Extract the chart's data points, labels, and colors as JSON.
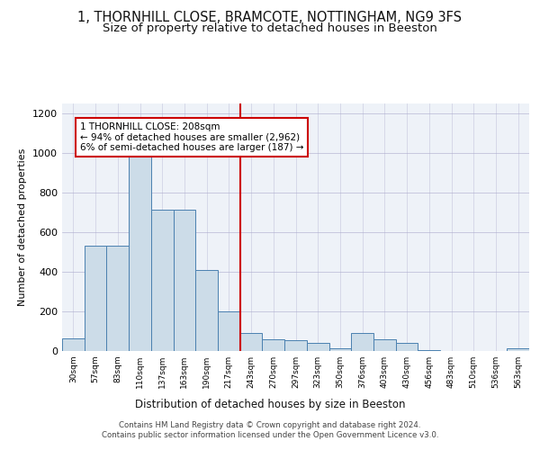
{
  "title": "1, THORNHILL CLOSE, BRAMCOTE, NOTTINGHAM, NG9 3FS",
  "subtitle": "Size of property relative to detached houses in Beeston",
  "xlabel": "Distribution of detached houses by size in Beeston",
  "ylabel": "Number of detached properties",
  "bar_labels": [
    "30sqm",
    "57sqm",
    "83sqm",
    "110sqm",
    "137sqm",
    "163sqm",
    "190sqm",
    "217sqm",
    "243sqm",
    "270sqm",
    "297sqm",
    "323sqm",
    "350sqm",
    "376sqm",
    "403sqm",
    "430sqm",
    "456sqm",
    "483sqm",
    "510sqm",
    "536sqm",
    "563sqm"
  ],
  "bar_values": [
    65,
    530,
    530,
    1000,
    715,
    715,
    410,
    200,
    90,
    60,
    55,
    40,
    13,
    90,
    60,
    40,
    3,
    1,
    2,
    1,
    13
  ],
  "bar_color": "#ccdce8",
  "bar_edge_color": "#4a80b0",
  "vline_x_idx": 8,
  "vline_color": "#cc0000",
  "annotation_text": "1 THORNHILL CLOSE: 208sqm\n← 94% of detached houses are smaller (2,962)\n6% of semi-detached houses are larger (187) →",
  "annotation_box_color": "#ffffff",
  "annotation_box_edge": "#cc0000",
  "ylim": [
    0,
    1250
  ],
  "yticks": [
    0,
    200,
    400,
    600,
    800,
    1000,
    1200
  ],
  "footer": "Contains HM Land Registry data © Crown copyright and database right 2024.\nContains public sector information licensed under the Open Government Licence v3.0.",
  "bg_color": "#eef2f8",
  "title_fontsize": 10.5,
  "subtitle_fontsize": 9.5
}
